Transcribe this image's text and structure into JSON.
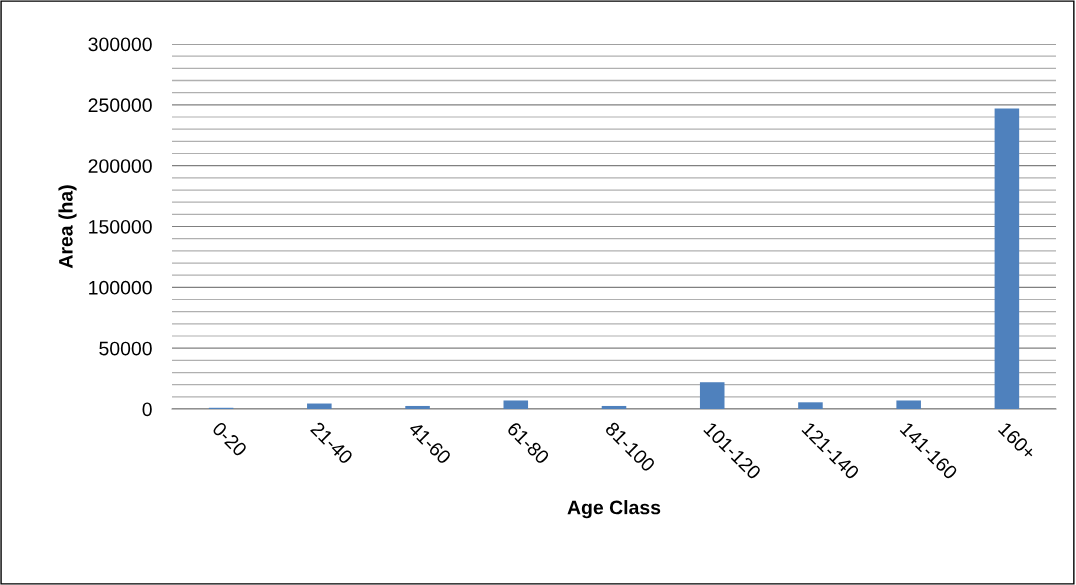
{
  "chart_data": {
    "type": "bar",
    "xlabel": "Age Class",
    "ylabel": "Area (ha)",
    "categories": [
      "0-20",
      "21-40",
      "41-60",
      "61-80",
      "81-100",
      "101-120",
      "121-140",
      "141-160",
      "160+"
    ],
    "values": [
      1000,
      4500,
      2500,
      7000,
      2500,
      22000,
      5500,
      7000,
      247000
    ],
    "color": "#4f81bd",
    "ylim": [
      0,
      300000
    ],
    "yticks": [
      0,
      {
        "value": 10000,
        "label": null
      },
      {
        "value": 20000,
        "label": null
      },
      {
        "value": 30000,
        "label": null
      },
      {
        "value": 40000,
        "label": null
      },
      50000,
      {
        "value": 60000,
        "label": null
      },
      {
        "value": 70000,
        "label": null
      },
      {
        "value": 80000,
        "label": null
      },
      {
        "value": 90000,
        "label": null
      },
      100000,
      {
        "value": 110000,
        "label": null
      },
      {
        "value": 120000,
        "label": null
      },
      {
        "value": 130000,
        "label": null
      },
      {
        "value": 140000,
        "label": null
      },
      150000,
      {
        "value": 160000,
        "label": null
      },
      {
        "value": 170000,
        "label": null
      },
      {
        "value": 180000,
        "label": null
      },
      {
        "value": 190000,
        "label": null
      },
      200000,
      {
        "value": 210000,
        "label": null
      },
      {
        "value": 220000,
        "label": null
      },
      {
        "value": 230000,
        "label": null
      },
      {
        "value": 240000,
        "label": null
      },
      250000,
      {
        "value": 260000,
        "label": null
      },
      {
        "value": 270000,
        "label": null
      },
      {
        "value": 280000,
        "label": null
      },
      {
        "value": 290000,
        "label": null
      },
      300000
    ],
    "grid": "y",
    "legend": false
  }
}
